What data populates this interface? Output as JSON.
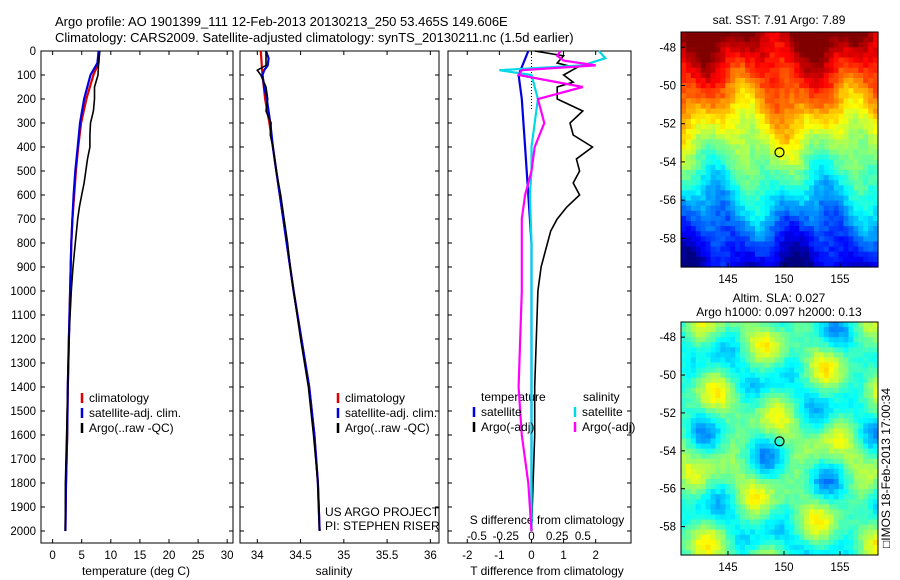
{
  "header": {
    "line1": "Argo profile: AO 1901399_111 12-Feb-2013 20130213_250 53.465S 149.606E",
    "line2": "Climatology: CARS2009. Satellite-adjusted climatology: synTS_20130211.nc (1.5d earlier)"
  },
  "chart_data": [
    {
      "type": "line",
      "xlabel": "temperature (deg C)",
      "xlim": [
        -2,
        31
      ],
      "xticks": [
        0,
        5,
        10,
        15,
        20,
        25,
        30
      ],
      "ylim": [
        0,
        2050
      ],
      "yticks": [
        0,
        100,
        200,
        300,
        400,
        500,
        600,
        700,
        800,
        900,
        1000,
        1100,
        1200,
        1300,
        1400,
        1500,
        1600,
        1700,
        1800,
        1900,
        2000
      ],
      "y_reversed": true,
      "legend": [
        "climatology",
        "satellite-adj. clim.",
        "Argo(..raw -QC)"
      ],
      "legend_placement": "lower-center",
      "series": [
        {
          "name": "climatology",
          "color": "#e00000",
          "y": [
            0,
            50,
            100,
            200,
            300,
            400,
            500,
            600,
            700,
            800,
            1000,
            1200,
            1400,
            1600,
            1800,
            2000
          ],
          "x": [
            8.0,
            7.9,
            7.0,
            5.8,
            4.9,
            4.4,
            4.0,
            3.7,
            3.4,
            3.2,
            3.0,
            2.8,
            2.6,
            2.5,
            2.3,
            2.2
          ]
        },
        {
          "name": "satellite-adj. clim.",
          "color": "#0000e0",
          "y": [
            0,
            50,
            100,
            200,
            300,
            400,
            500,
            600,
            700,
            800,
            1000,
            1200,
            1400,
            1600,
            1800,
            2000
          ],
          "x": [
            7.9,
            7.7,
            6.5,
            5.4,
            4.7,
            4.3,
            3.9,
            3.6,
            3.4,
            3.2,
            3.0,
            2.8,
            2.6,
            2.5,
            2.3,
            2.2
          ]
        },
        {
          "name": "Argo(..raw -QC)",
          "color": "#000000",
          "y": [
            0,
            50,
            100,
            150,
            200,
            250,
            300,
            350,
            400,
            450,
            500,
            550,
            600,
            650,
            700,
            750,
            800,
            900,
            1000,
            1100,
            1200,
            1300,
            1400,
            1500,
            1600,
            1700,
            1800,
            1900,
            2000
          ],
          "x": [
            8.1,
            7.9,
            7.8,
            7.2,
            7.2,
            7.0,
            6.5,
            6.4,
            6.4,
            6.0,
            5.7,
            5.4,
            5.0,
            4.6,
            4.3,
            4.1,
            3.9,
            3.5,
            3.2,
            3.0,
            2.8,
            2.7,
            2.6,
            2.5,
            2.4,
            2.3,
            2.2,
            2.2,
            2.2
          ]
        }
      ]
    },
    {
      "type": "line",
      "xlabel": "salinity",
      "xlim": [
        33.8,
        36.1
      ],
      "xticks": [
        34,
        34.5,
        35,
        35.5,
        36
      ],
      "ylim": [
        0,
        2050
      ],
      "y_reversed": true,
      "legend": [
        "climatology",
        "satellite-adj. clim.",
        "Argo(..raw -QC)"
      ],
      "legend_placement": "lower-center",
      "annotation": [
        "US ARGO PROJECT",
        "PI: STEPHEN RISER"
      ],
      "series": [
        {
          "name": "climatology",
          "color": "#e00000",
          "y": [
            0,
            50,
            100,
            200,
            300,
            400,
            500,
            600,
            700,
            800,
            1000,
            1200,
            1400,
            1600,
            1800,
            2000
          ],
          "x": [
            34.04,
            34.05,
            34.06,
            34.09,
            34.14,
            34.18,
            34.22,
            34.26,
            34.3,
            34.34,
            34.42,
            34.51,
            34.6,
            34.66,
            34.7,
            34.72
          ]
        },
        {
          "name": "satellite-adj. clim.",
          "color": "#0000e0",
          "y": [
            0,
            30,
            60,
            80,
            100,
            150,
            200,
            300,
            400,
            500,
            600,
            700,
            800,
            1000,
            1200,
            1400,
            1600,
            1800,
            2000
          ],
          "x": [
            34.1,
            34.13,
            34.12,
            34.08,
            34.06,
            34.08,
            34.11,
            34.15,
            34.18,
            34.22,
            34.26,
            34.3,
            34.34,
            34.42,
            34.51,
            34.6,
            34.66,
            34.7,
            34.72
          ]
        },
        {
          "name": "Argo(..raw -QC)",
          "color": "#000000",
          "y": [
            0,
            60,
            80,
            100,
            150,
            200,
            250,
            300,
            350,
            400,
            450,
            500,
            600,
            700,
            800,
            900,
            1000,
            1200,
            1400,
            1600,
            1800,
            2000
          ],
          "x": [
            34.1,
            34.1,
            34.0,
            34.04,
            34.1,
            34.12,
            34.1,
            34.16,
            34.15,
            34.18,
            34.2,
            34.22,
            34.27,
            34.31,
            34.35,
            34.38,
            34.42,
            34.5,
            34.59,
            34.65,
            34.7,
            34.72
          ]
        }
      ]
    },
    {
      "type": "line",
      "xlabel": "T difference from climatology",
      "xlabel_top": "S difference from climatology",
      "xlim": [
        -2.6,
        3.1
      ],
      "xticks": [
        -2,
        -1,
        0,
        1,
        2
      ],
      "xticks_salinity": [
        -0.5,
        -0.25,
        0,
        0.25,
        0.5
      ],
      "ylim": [
        0,
        2050
      ],
      "y_reversed": true,
      "legend_temperature_title": "temperature",
      "legend_salinity_title": "salinity",
      "legend_temperature": [
        "satellite",
        "Argo(-adj)"
      ],
      "legend_salinity": [
        "satellite",
        "Argo(-adj)"
      ],
      "series": [
        {
          "name": "satellite",
          "color": "#0000e0",
          "y": [
            0,
            100,
            200,
            400,
            600,
            800,
            1000,
            1400,
            2000
          ],
          "x": [
            -0.1,
            -0.4,
            -0.3,
            -0.2,
            -0.1,
            0,
            0,
            0,
            0
          ]
        },
        {
          "name": "Argo(-adj)",
          "color": "#000000",
          "y": [
            0,
            20,
            50,
            70,
            100,
            130,
            150,
            200,
            250,
            300,
            350,
            400,
            450,
            500,
            550,
            600,
            650,
            700,
            750,
            800,
            850,
            900,
            1000,
            1200,
            1400,
            1600,
            1800,
            2000
          ],
          "x": [
            0.1,
            1.0,
            0.8,
            1.4,
            1.0,
            1.3,
            0.8,
            0.8,
            1.6,
            1.2,
            1.3,
            1.9,
            1.4,
            1.5,
            1.3,
            1.5,
            1.1,
            0.8,
            0.6,
            0.5,
            0.4,
            0.3,
            0.2,
            0.15,
            0.1,
            0.1,
            0.05,
            0
          ]
        },
        {
          "name": "satellite",
          "color": "#00d8e8",
          "y": [
            0,
            30,
            60,
            80,
            100,
            150,
            200,
            300,
            400,
            500,
            600,
            800,
            1000,
            1400,
            2000
          ],
          "x": [
            2.1,
            2.3,
            1.6,
            -1.0,
            0,
            0.1,
            0.2,
            0.1,
            0,
            0,
            -0.05,
            0,
            0,
            0,
            0
          ]
        },
        {
          "name": "Argo(-adj)",
          "color": "#ff00ff",
          "y": [
            0,
            20,
            40,
            60,
            80,
            100,
            150,
            200,
            300,
            400,
            500,
            600,
            700,
            800,
            1000,
            1200,
            1400,
            1600,
            1800,
            2000
          ],
          "x": [
            0.9,
            0.8,
            1.0,
            2.0,
            -0.3,
            -0.4,
            1.6,
            0.2,
            0.4,
            0.1,
            0,
            -0.2,
            -0.3,
            -0.3,
            -0.3,
            -0.35,
            -0.4,
            -0.3,
            -0.1,
            0
          ]
        }
      ]
    },
    {
      "type": "heatmap",
      "title": "sat. SST: 7.91  Argo: 7.89",
      "xticks": [
        145,
        150,
        155
      ],
      "yticks": [
        -48,
        -50,
        -52,
        -54,
        -56,
        -58
      ],
      "xlim": [
        140.8,
        158.4
      ],
      "ylim": [
        -59.5,
        -47.2
      ],
      "marker": {
        "lon": 149.6,
        "lat": -53.5
      }
    },
    {
      "type": "heatmap",
      "title_line1": "Altim. SLA: 0.027",
      "title_line2": "Argo h1000: 0.097  h2000: 0.13",
      "xticks": [
        145,
        150,
        155
      ],
      "yticks": [
        -48,
        -50,
        -52,
        -54,
        -56,
        -58
      ],
      "xlim": [
        140.8,
        158.4
      ],
      "ylim": [
        -59.5,
        -47.2
      ],
      "marker": {
        "lon": 149.6,
        "lat": -53.5
      }
    }
  ],
  "footer": {
    "stamp": "□IMOS 18-Feb-2013 17:00:34"
  }
}
